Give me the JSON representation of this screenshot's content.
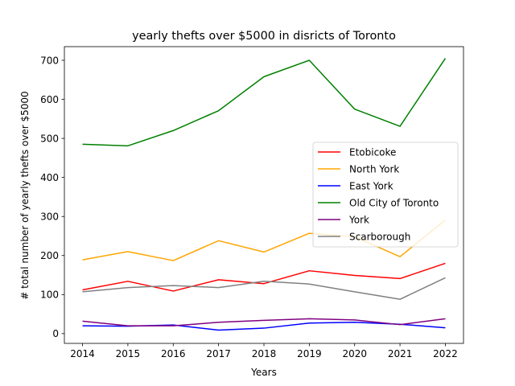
{
  "chart_data": {
    "type": "line",
    "title": "yearly thefts over $5000 in disricts of Toronto",
    "xlabel": "Years",
    "ylabel": "# total number of yearly thefts over $5000",
    "x": [
      2014,
      2015,
      2016,
      2017,
      2018,
      2019,
      2020,
      2021,
      2022
    ],
    "x_ticks": [
      "2014",
      "2015",
      "2016",
      "2017",
      "2018",
      "2019",
      "2020",
      "2021",
      "2022"
    ],
    "y_ticks": [
      "0",
      "100",
      "200",
      "300",
      "400",
      "500",
      "600",
      "700"
    ],
    "xlim": [
      2013.6,
      2022.4
    ],
    "ylim": [
      -25,
      735
    ],
    "grid": false,
    "legend_position": "center-right",
    "series": [
      {
        "name": "Etobicoke",
        "color": "#ff0000",
        "values": [
          112,
          134,
          109,
          138,
          128,
          161,
          149,
          141,
          180
        ]
      },
      {
        "name": "North York",
        "color": "#ffa500",
        "values": [
          189,
          210,
          187,
          238,
          209,
          257,
          248,
          197,
          291
        ]
      },
      {
        "name": "East York",
        "color": "#0000ff",
        "values": [
          20,
          19,
          22,
          9,
          14,
          27,
          29,
          24,
          15
        ]
      },
      {
        "name": "Old City of Toronto",
        "color": "#008000",
        "values": [
          485,
          481,
          520,
          571,
          658,
          700,
          575,
          531,
          705
        ]
      },
      {
        "name": "York",
        "color": "#800080",
        "values": [
          32,
          20,
          20,
          29,
          34,
          38,
          35,
          23,
          38
        ]
      },
      {
        "name": "Scarborough",
        "color": "#808080",
        "values": [
          107,
          118,
          123,
          118,
          134,
          127,
          107,
          88,
          143
        ]
      }
    ]
  }
}
